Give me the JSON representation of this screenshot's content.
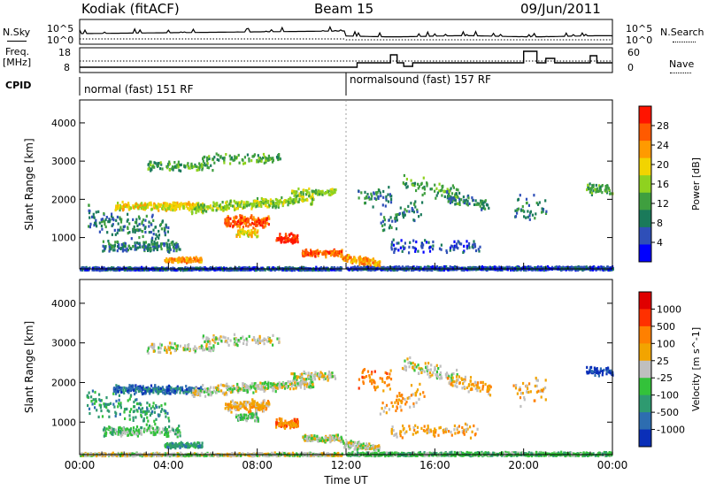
{
  "header": {
    "station": "Kodiak (fitACF)",
    "beam": "Beam 15",
    "date": "09/Jun/2011"
  },
  "noise_panel": {
    "left_label": "N.Sky",
    "right_label": "N.Search",
    "left_ticks": [
      "10^5",
      "10^0"
    ],
    "right_ticks": [
      "10^5",
      "10^0"
    ]
  },
  "freq_panel": {
    "left_label_1": "Freq.",
    "left_label_2": "[MHz]",
    "left_ticks": [
      "18",
      "8"
    ],
    "right_label": "Nave",
    "right_ticks": [
      "60",
      "0"
    ]
  },
  "cpid_panel": {
    "label": "CPID",
    "segments": [
      {
        "name": "normal (fast) 151 RF",
        "start_hour": 0
      },
      {
        "name": "normalsound (fast) 157 RF",
        "start_hour": 12
      }
    ]
  },
  "chart_data": [
    {
      "type": "heatmap",
      "title": "",
      "ylabel": "Slant Range [km]",
      "xlabel": "",
      "x_range_hours": [
        0,
        24
      ],
      "ylim": [
        180,
        4600
      ],
      "y_ticks": [
        "1000",
        "2000",
        "3000",
        "4000"
      ],
      "colorbar": {
        "label": "Power [dB]",
        "ticks": [
          "4",
          "8",
          "12",
          "16",
          "20",
          "24",
          "28"
        ],
        "colors": [
          "#0000ff",
          "#2f4fb8",
          "#1a7a5a",
          "#3f9f3f",
          "#8fd21f",
          "#f2d400",
          "#ff9a00",
          "#ff5a00",
          "#ff1400"
        ]
      }
    },
    {
      "type": "heatmap",
      "title": "",
      "ylabel": "Slant Range [km]",
      "xlabel": "Time UT",
      "x_range_hours": [
        0,
        24
      ],
      "ylim": [
        180,
        4600
      ],
      "x_ticks": [
        "00:00",
        "04:00",
        "08:00",
        "12:00",
        "16:00",
        "20:00",
        "00:00"
      ],
      "y_ticks": [
        "1000",
        "2000",
        "3000",
        "4000"
      ],
      "colorbar": {
        "label": "Velocity [m s^-1]",
        "ticks": [
          "1000",
          "500",
          "100",
          "25",
          "-25",
          "-100",
          "-500",
          "-1000"
        ],
        "colors": [
          "#0a2fb8",
          "#2d6db0",
          "#2e9a70",
          "#33c23a",
          "#bfbfbf",
          "#f2a400",
          "#ff8000",
          "#ff3000",
          "#e00000"
        ]
      }
    }
  ]
}
